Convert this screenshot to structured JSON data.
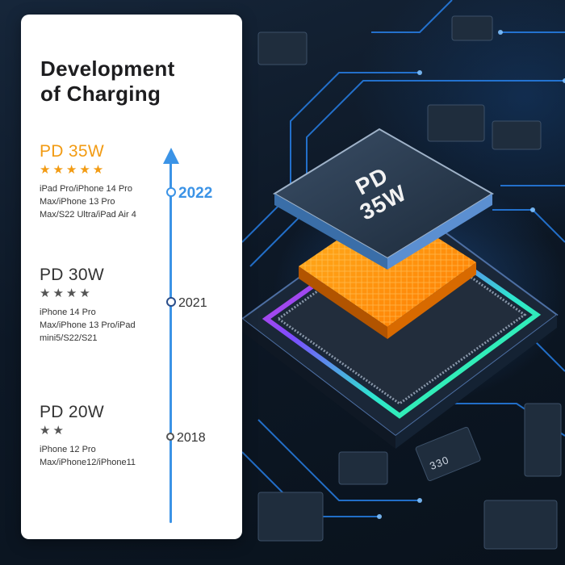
{
  "card": {
    "title_line1": "Development",
    "title_line2": "of Charging"
  },
  "timeline": [
    {
      "power": "PD 35W",
      "stars": "★★★★★",
      "rating": 5,
      "year": "2022",
      "models": [
        "iPad Pro/iPhone 14 Pro",
        "Max/iPhone 13 Pro",
        "Max/S22 Ultra/iPad Air 4"
      ],
      "highlight": true
    },
    {
      "power": "PD 30W",
      "stars": "★★★★",
      "rating": 4,
      "year": "2021",
      "models": [
        "iPhone 14 Pro",
        "Max/iPhone 13 Pro/iPad",
        "mini5/S22/S21"
      ],
      "highlight": false
    },
    {
      "power": "PD 20W",
      "stars": "★★",
      "rating": 2,
      "year": "2018",
      "models": [
        "iPhone 12 Pro",
        "Max/iPhone12/iPhone11"
      ],
      "highlight": false
    }
  ],
  "chip": {
    "line1": "PD",
    "line2": "35W",
    "pcb_mark": "330"
  },
  "colors": {
    "accent_orange": "#f29b13",
    "timeline_blue": "#3b93e6",
    "card_bg": "#ffffff",
    "scene_bg": "#0b1420"
  }
}
